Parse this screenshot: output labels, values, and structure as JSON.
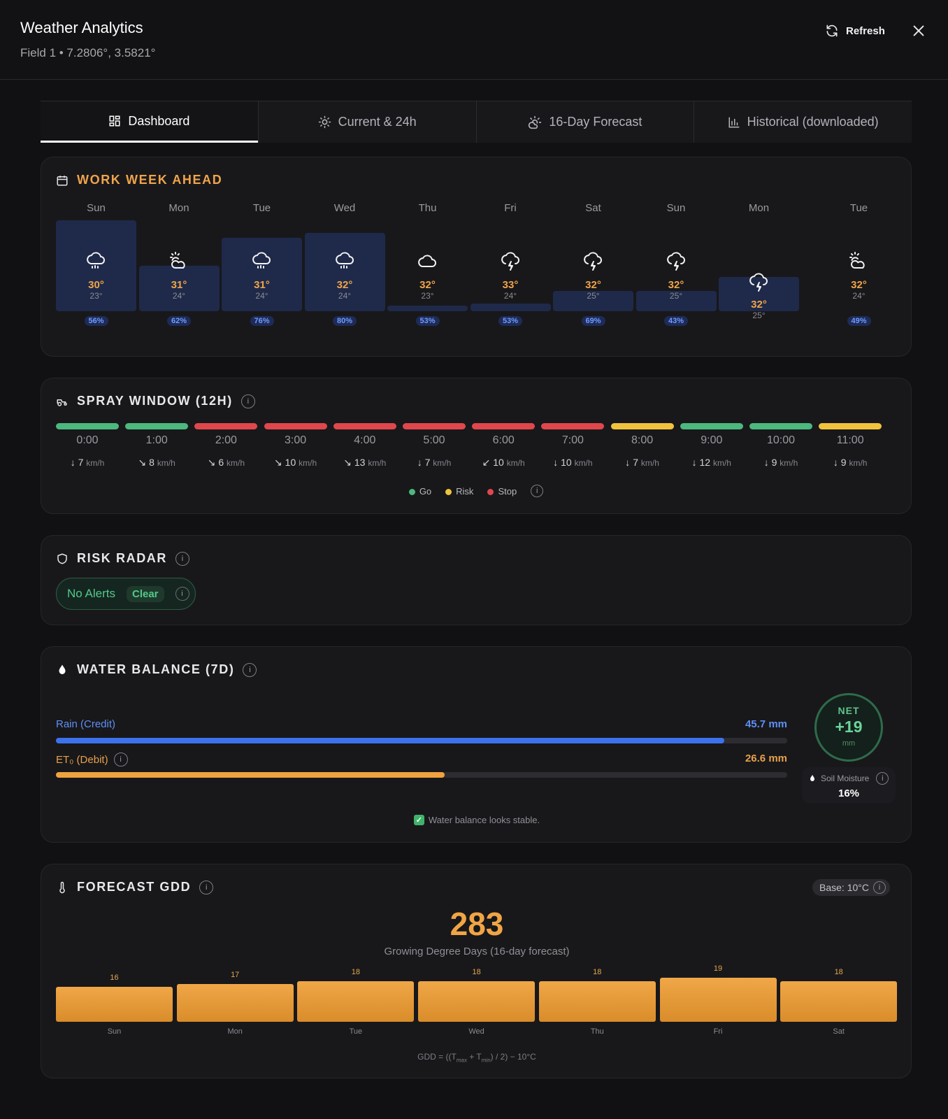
{
  "header": {
    "title": "Weather Analytics",
    "subtitle": "Field 1 • 7.2806°, 3.5821°",
    "refresh_label": "Refresh"
  },
  "tabs": [
    {
      "label": "Dashboard",
      "icon": "dashboard-grid-icon"
    },
    {
      "label": "Current & 24h",
      "icon": "sun-icon"
    },
    {
      "label": "16-Day Forecast",
      "icon": "sun-cloud-icon"
    },
    {
      "label": "Historical (downloaded)",
      "icon": "bar-chart-icon"
    }
  ],
  "workweek": {
    "title": "WORK WEEK AHEAD",
    "days": [
      {
        "day": "Sun",
        "icon": "rain-cloud-icon",
        "hi": "30°",
        "lo": "23°",
        "precip": "56%",
        "precip_value": 56
      },
      {
        "day": "Mon",
        "icon": "partly-cloudy-icon",
        "hi": "31°",
        "lo": "24°",
        "precip": "62%",
        "precip_value": 27
      },
      {
        "day": "Tue",
        "icon": "rain-cloud-icon",
        "hi": "31°",
        "lo": "24°",
        "precip": "76%",
        "precip_value": 45
      },
      {
        "day": "Wed",
        "icon": "rain-cloud-icon",
        "hi": "32°",
        "lo": "24°",
        "precip": "80%",
        "precip_value": 48
      },
      {
        "day": "Thu",
        "icon": "cloud-icon",
        "hi": "32°",
        "lo": "23°",
        "precip": "53%",
        "precip_value": 2
      },
      {
        "day": "Fri",
        "icon": "thunderstorm-icon",
        "hi": "33°",
        "lo": "24°",
        "precip": "53%",
        "precip_value": 3
      },
      {
        "day": "Sat",
        "icon": "thunderstorm-icon",
        "hi": "32°",
        "lo": "25°",
        "precip": "69%",
        "precip_value": 11
      },
      {
        "day": "Sun",
        "icon": "thunderstorm-icon",
        "hi": "32°",
        "lo": "25°",
        "precip": "43%",
        "precip_value": 11
      },
      {
        "day": "Mon",
        "icon": "thunderstorm-icon",
        "hi": "32°",
        "lo": "25°",
        "precip": "",
        "precip_value": 20
      },
      {
        "day": "Tue",
        "icon": "partly-cloudy-icon",
        "hi": "32°",
        "lo": "24°",
        "precip": "49%",
        "precip_value": 0
      }
    ]
  },
  "spray": {
    "title": "SPRAY WINDOW (12H)",
    "hours": [
      {
        "time": "0:00",
        "status": "go",
        "arrow": "↓",
        "speed": "7",
        "unit": "km/h"
      },
      {
        "time": "1:00",
        "status": "go",
        "arrow": "↘",
        "speed": "8",
        "unit": "km/h"
      },
      {
        "time": "2:00",
        "status": "stop",
        "arrow": "↘",
        "speed": "6",
        "unit": "km/h"
      },
      {
        "time": "3:00",
        "status": "stop",
        "arrow": "↘",
        "speed": "10",
        "unit": "km/h"
      },
      {
        "time": "4:00",
        "status": "stop",
        "arrow": "↘",
        "speed": "13",
        "unit": "km/h"
      },
      {
        "time": "5:00",
        "status": "stop",
        "arrow": "↓",
        "speed": "7",
        "unit": "km/h"
      },
      {
        "time": "6:00",
        "status": "stop",
        "arrow": "↙",
        "speed": "10",
        "unit": "km/h"
      },
      {
        "time": "7:00",
        "status": "stop",
        "arrow": "↓",
        "speed": "10",
        "unit": "km/h"
      },
      {
        "time": "8:00",
        "status": "risk",
        "arrow": "↓",
        "speed": "7",
        "unit": "km/h"
      },
      {
        "time": "9:00",
        "status": "go",
        "arrow": "↓",
        "speed": "12",
        "unit": "km/h"
      },
      {
        "time": "10:00",
        "status": "go",
        "arrow": "↓",
        "speed": "9",
        "unit": "km/h"
      },
      {
        "time": "11:00",
        "status": "risk",
        "arrow": "↓",
        "speed": "9",
        "unit": "km/h"
      }
    ],
    "legend": {
      "go": "Go",
      "risk": "Risk",
      "stop": "Stop"
    },
    "colors": {
      "go": "#4cb87e",
      "risk": "#f1c33c",
      "stop": "#e0474c"
    }
  },
  "risk": {
    "title": "RISK RADAR",
    "status": "No Alerts",
    "badge": "Clear"
  },
  "water": {
    "title": "WATER BALANCE (7D)",
    "rain_label": "Rain (Credit)",
    "rain_value": "45.7 mm",
    "rain_fraction": 0.914,
    "et_label": "ET₀ (Debit)",
    "et_value": "26.6 mm",
    "et_fraction": 0.532,
    "net_label": "NET",
    "net_value": "+19",
    "net_unit": "mm",
    "soil_label": "Soil Moisture",
    "soil_value": "16%",
    "note": "Water balance looks stable."
  },
  "gdd": {
    "title": "FORECAST GDD",
    "base": "Base: 10°C",
    "total": "283",
    "subtitle": "Growing Degree Days (16-day forecast)",
    "formula": "GDD = ((Tmax + Tmin) / 2) − 10°C",
    "chart_data": {
      "type": "bar",
      "categories": [
        "Sun",
        "Mon",
        "Tue",
        "Wed",
        "Thu",
        "Fri",
        "Sat"
      ],
      "values": [
        16,
        17,
        18,
        18,
        18,
        19,
        18
      ],
      "ylim": [
        0,
        19
      ]
    }
  }
}
